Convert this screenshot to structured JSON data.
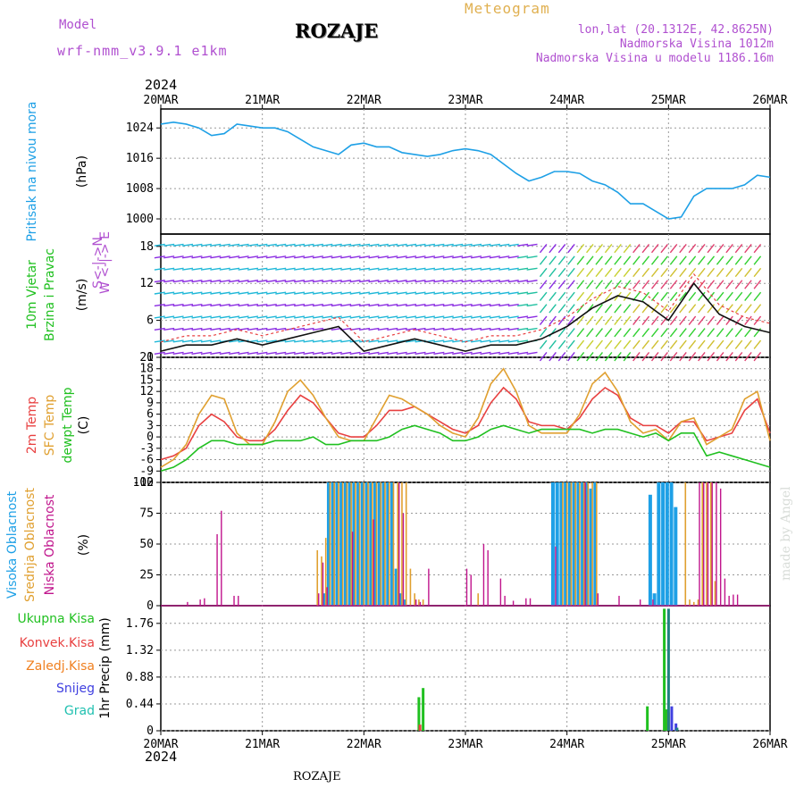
{
  "header": {
    "model_label": "Model",
    "model_run": "wrf-nmm_v3.9.1 e1km",
    "station": "ROZAJE",
    "product": "Meteogram",
    "coords": "lon,lat (20.1312E, 42.8625N)",
    "altitude": "Nadmorska Visina 1012m",
    "model_altitude": "Nadmorska Visina u modelu 1186.16m",
    "year_top": "2024",
    "year_bottom": "2024",
    "footer_station": "ROZAJE",
    "credit": "made by Angel"
  },
  "colors": {
    "pressure": "#1ea0e6",
    "temp2m": "#e84040",
    "sfc_temp": "#e0a030",
    "dewpt": "#20c020",
    "cloud_high": "#1ea0e6",
    "cloud_mid": "#e0a030",
    "cloud_low": "#c0148c",
    "precip_total": "#20c020",
    "precip_conv": "#e84040",
    "precip_strat": "#f08020",
    "snow": "#4040e0",
    "hail": "#20c0b0",
    "label_purple": "#b050d0"
  },
  "chart_data": [
    {
      "type": "line",
      "name": "pressure-panel",
      "ylabel_left": "Pritisak na nivou mora",
      "ylabel_unit": "(hPa)",
      "x_categories": [
        "20MAR",
        "21MAR",
        "22MAR",
        "23MAR",
        "24MAR",
        "25MAR",
        "26MAR"
      ],
      "yticks": [
        1000,
        1008,
        1016,
        1024
      ],
      "ylim": [
        996,
        1029
      ],
      "x_hours": [
        0,
        3,
        6,
        9,
        12,
        15,
        18,
        21,
        24,
        27,
        30,
        33,
        36,
        39,
        42,
        45,
        48,
        51,
        54,
        57,
        60,
        63,
        66,
        69,
        72,
        75,
        78,
        81,
        84,
        87,
        90,
        93,
        96,
        99,
        102,
        105,
        108,
        111,
        114,
        117,
        120,
        123,
        126,
        129,
        132,
        135,
        138,
        141,
        144
      ],
      "values": [
        1025,
        1025.5,
        1025,
        1024,
        1022,
        1022.5,
        1025,
        1024.5,
        1024,
        1024,
        1023,
        1021,
        1019,
        1018,
        1017,
        1019.5,
        1020,
        1019,
        1019,
        1017.5,
        1017,
        1016.5,
        1017,
        1018,
        1018.5,
        1018,
        1017,
        1014.5,
        1012,
        1010,
        1011,
        1012.5,
        1012.5,
        1012,
        1010,
        1009,
        1007,
        1004,
        1004,
        1002,
        1000,
        1000.5,
        1006,
        1008,
        1008,
        1008,
        1009,
        1011.5,
        1011
      ]
    },
    {
      "type": "barbs",
      "name": "wind-panel",
      "ylabel_left": "10m Vjetar",
      "ylabel_left2": "Brzina i Pravac",
      "ylabel_unit": "(m/s)",
      "direction_legend": "W <-|-> E",
      "direction_legend2": "S<-|->N",
      "yticks": [
        0,
        6,
        12,
        18
      ],
      "ylim": [
        0,
        20
      ],
      "speed_hours": [
        0,
        6,
        12,
        18,
        24,
        30,
        36,
        42,
        48,
        54,
        60,
        66,
        72,
        78,
        84,
        90,
        96,
        102,
        108,
        114,
        120,
        126,
        132,
        138,
        144
      ],
      "speed_values": [
        1,
        2,
        2,
        3,
        2,
        3,
        4,
        5,
        1,
        2,
        3,
        2,
        1,
        2,
        2,
        3,
        5,
        8,
        10,
        9,
        6,
        12,
        7,
        5,
        4
      ]
    },
    {
      "type": "line",
      "name": "temperature-panel",
      "ylabel_left": "2m Temp",
      "ylabel_left2": "SFC Temp",
      "ylabel_left3": "dewpt Temp",
      "ylabel_unit": "(C)",
      "yticks": [
        -12,
        -9,
        -6,
        -3,
        0,
        3,
        6,
        9,
        12,
        15,
        18,
        21
      ],
      "ylim": [
        -12,
        21
      ],
      "x_hours": [
        0,
        3,
        6,
        9,
        12,
        15,
        18,
        21,
        24,
        27,
        30,
        33,
        36,
        39,
        42,
        45,
        48,
        51,
        54,
        57,
        60,
        63,
        66,
        69,
        72,
        75,
        78,
        81,
        84,
        87,
        90,
        93,
        96,
        99,
        102,
        105,
        108,
        111,
        114,
        117,
        120,
        123,
        126,
        129,
        132,
        135,
        138,
        141,
        144
      ],
      "series": [
        {
          "name": "2m Temp",
          "values": [
            -6,
            -5,
            -3,
            3,
            6,
            4,
            0,
            -1,
            -1,
            2,
            7,
            11,
            9,
            5,
            1,
            0,
            0,
            3,
            7,
            7,
            8,
            6,
            4,
            2,
            1,
            3,
            9,
            13,
            10,
            4,
            3,
            3,
            2,
            5,
            10,
            13,
            11,
            5,
            3,
            3,
            1,
            4,
            4,
            -1,
            0,
            1,
            7,
            10,
            1
          ]
        },
        {
          "name": "SFC Temp",
          "values": [
            -8,
            -6,
            -2,
            6,
            11,
            10,
            1,
            -2,
            -2,
            4,
            12,
            15,
            11,
            5,
            0,
            -1,
            -1,
            5,
            11,
            10,
            8,
            6,
            3,
            1,
            0,
            5,
            14,
            18,
            12,
            3,
            1,
            1,
            1,
            6,
            14,
            17,
            12,
            4,
            1,
            2,
            -1,
            4,
            5,
            -2,
            0,
            2,
            10,
            12,
            -1
          ]
        },
        {
          "name": "dewpt Temp",
          "values": [
            -9,
            -8,
            -6,
            -3,
            -1,
            -1,
            -2,
            -2,
            -2,
            -1,
            -1,
            -1,
            0,
            -2,
            -2,
            -1,
            -1,
            -1,
            0,
            2,
            3,
            2,
            1,
            -1,
            -1,
            0,
            2,
            3,
            2,
            1,
            2,
            2,
            2,
            2,
            1,
            2,
            2,
            1,
            0,
            1,
            -1,
            1,
            1,
            -5,
            -4,
            -5,
            -6,
            -7,
            -8
          ]
        }
      ]
    },
    {
      "type": "bar",
      "name": "cloud-panel",
      "ylabel_left": "Visoka Oblacnost",
      "ylabel_left2": "Srednja Oblacnost",
      "ylabel_left3": "Niska Oblacnost",
      "ylabel_unit": "(%)",
      "yticks": [
        0,
        25,
        50,
        75,
        100
      ],
      "ylim": [
        0,
        100
      ],
      "series": [
        {
          "name": "Visoka Oblacnost",
          "hours": [
            39,
            40,
            41,
            42,
            43,
            44,
            45,
            46,
            47,
            48,
            49,
            50,
            51,
            52,
            53,
            54,
            55,
            56,
            57,
            58,
            93,
            94,
            95,
            96,
            97,
            98,
            99,
            100,
            101,
            102,
            103,
            116,
            117,
            118,
            119,
            120,
            121,
            122
          ],
          "values": [
            10,
            100,
            100,
            100,
            100,
            100,
            100,
            100,
            100,
            100,
            100,
            100,
            100,
            100,
            100,
            100,
            100,
            30,
            10,
            5,
            100,
            100,
            100,
            100,
            100,
            100,
            100,
            100,
            100,
            95,
            100,
            90,
            10,
            100,
            100,
            100,
            100,
            80
          ]
        },
        {
          "name": "Srednja Oblacnost",
          "hours": [
            37,
            38,
            39,
            40,
            41,
            42,
            43,
            44,
            45,
            46,
            47,
            48,
            49,
            50,
            51,
            52,
            53,
            54,
            55,
            56,
            57,
            58,
            59,
            60,
            61,
            62,
            75,
            95,
            96,
            97,
            98,
            99,
            100,
            101,
            102,
            103,
            124,
            125,
            126,
            127,
            128,
            129,
            130,
            131
          ],
          "values": [
            45,
            40,
            55,
            100,
            100,
            100,
            100,
            100,
            100,
            100,
            100,
            100,
            100,
            100,
            100,
            100,
            100,
            100,
            100,
            100,
            100,
            100,
            30,
            10,
            5,
            5,
            10,
            100,
            100,
            100,
            100,
            100,
            100,
            100,
            100,
            100,
            100,
            5,
            3,
            5,
            100,
            100,
            100,
            20
          ]
        },
        {
          "name": "Niska Oblacnost",
          "hours": [
            6,
            9,
            10,
            13,
            14,
            17,
            18,
            37,
            38,
            39,
            45,
            50,
            56,
            57,
            60,
            61,
            63,
            72,
            73,
            76,
            77,
            80,
            81,
            83,
            86,
            87,
            93,
            100,
            103,
            108,
            113,
            116,
            127,
            128,
            129,
            130,
            131,
            132,
            133,
            134,
            135,
            136
          ],
          "values": [
            3,
            5,
            6,
            58,
            77,
            8,
            8,
            10,
            35,
            15,
            60,
            70,
            100,
            75,
            5,
            3,
            30,
            30,
            25,
            50,
            45,
            22,
            8,
            4,
            6,
            6,
            48,
            100,
            10,
            8,
            5,
            5,
            100,
            100,
            100,
            100,
            100,
            95,
            22,
            8,
            9,
            9
          ]
        }
      ]
    },
    {
      "type": "bar",
      "name": "precip-panel",
      "ylabel_left": "1hr Precip",
      "ylabel_unit": "(mm)",
      "legend": [
        "Ukupna Kisa",
        "Konvek.Kisa",
        "Zaledj.Kisa",
        "Snijeg",
        "Grad"
      ],
      "yticks": [
        0,
        0.44,
        0.88,
        1.32,
        1.76
      ],
      "ylim": [
        0,
        2.05
      ],
      "series": [
        {
          "name": "Ukupna Kisa",
          "hours": [
            61,
            62,
            115,
            119,
            119.5
          ],
          "values": [
            0.55,
            0.7,
            0.4,
            2.0,
            0.35
          ]
        },
        {
          "name": "Konvek.Kisa",
          "hours": [
            61
          ],
          "values": [
            0.1
          ]
        },
        {
          "name": "Zaledj.Kisa",
          "hours": [
            119.5
          ],
          "values": [
            0.3
          ]
        },
        {
          "name": "Snijeg",
          "hours": [
            120,
            121
          ],
          "values": [
            0.4,
            0.12
          ]
        },
        {
          "name": "Grad",
          "hours": [
            119,
            121
          ],
          "values": [
            2.0,
            0.05
          ]
        }
      ]
    }
  ]
}
